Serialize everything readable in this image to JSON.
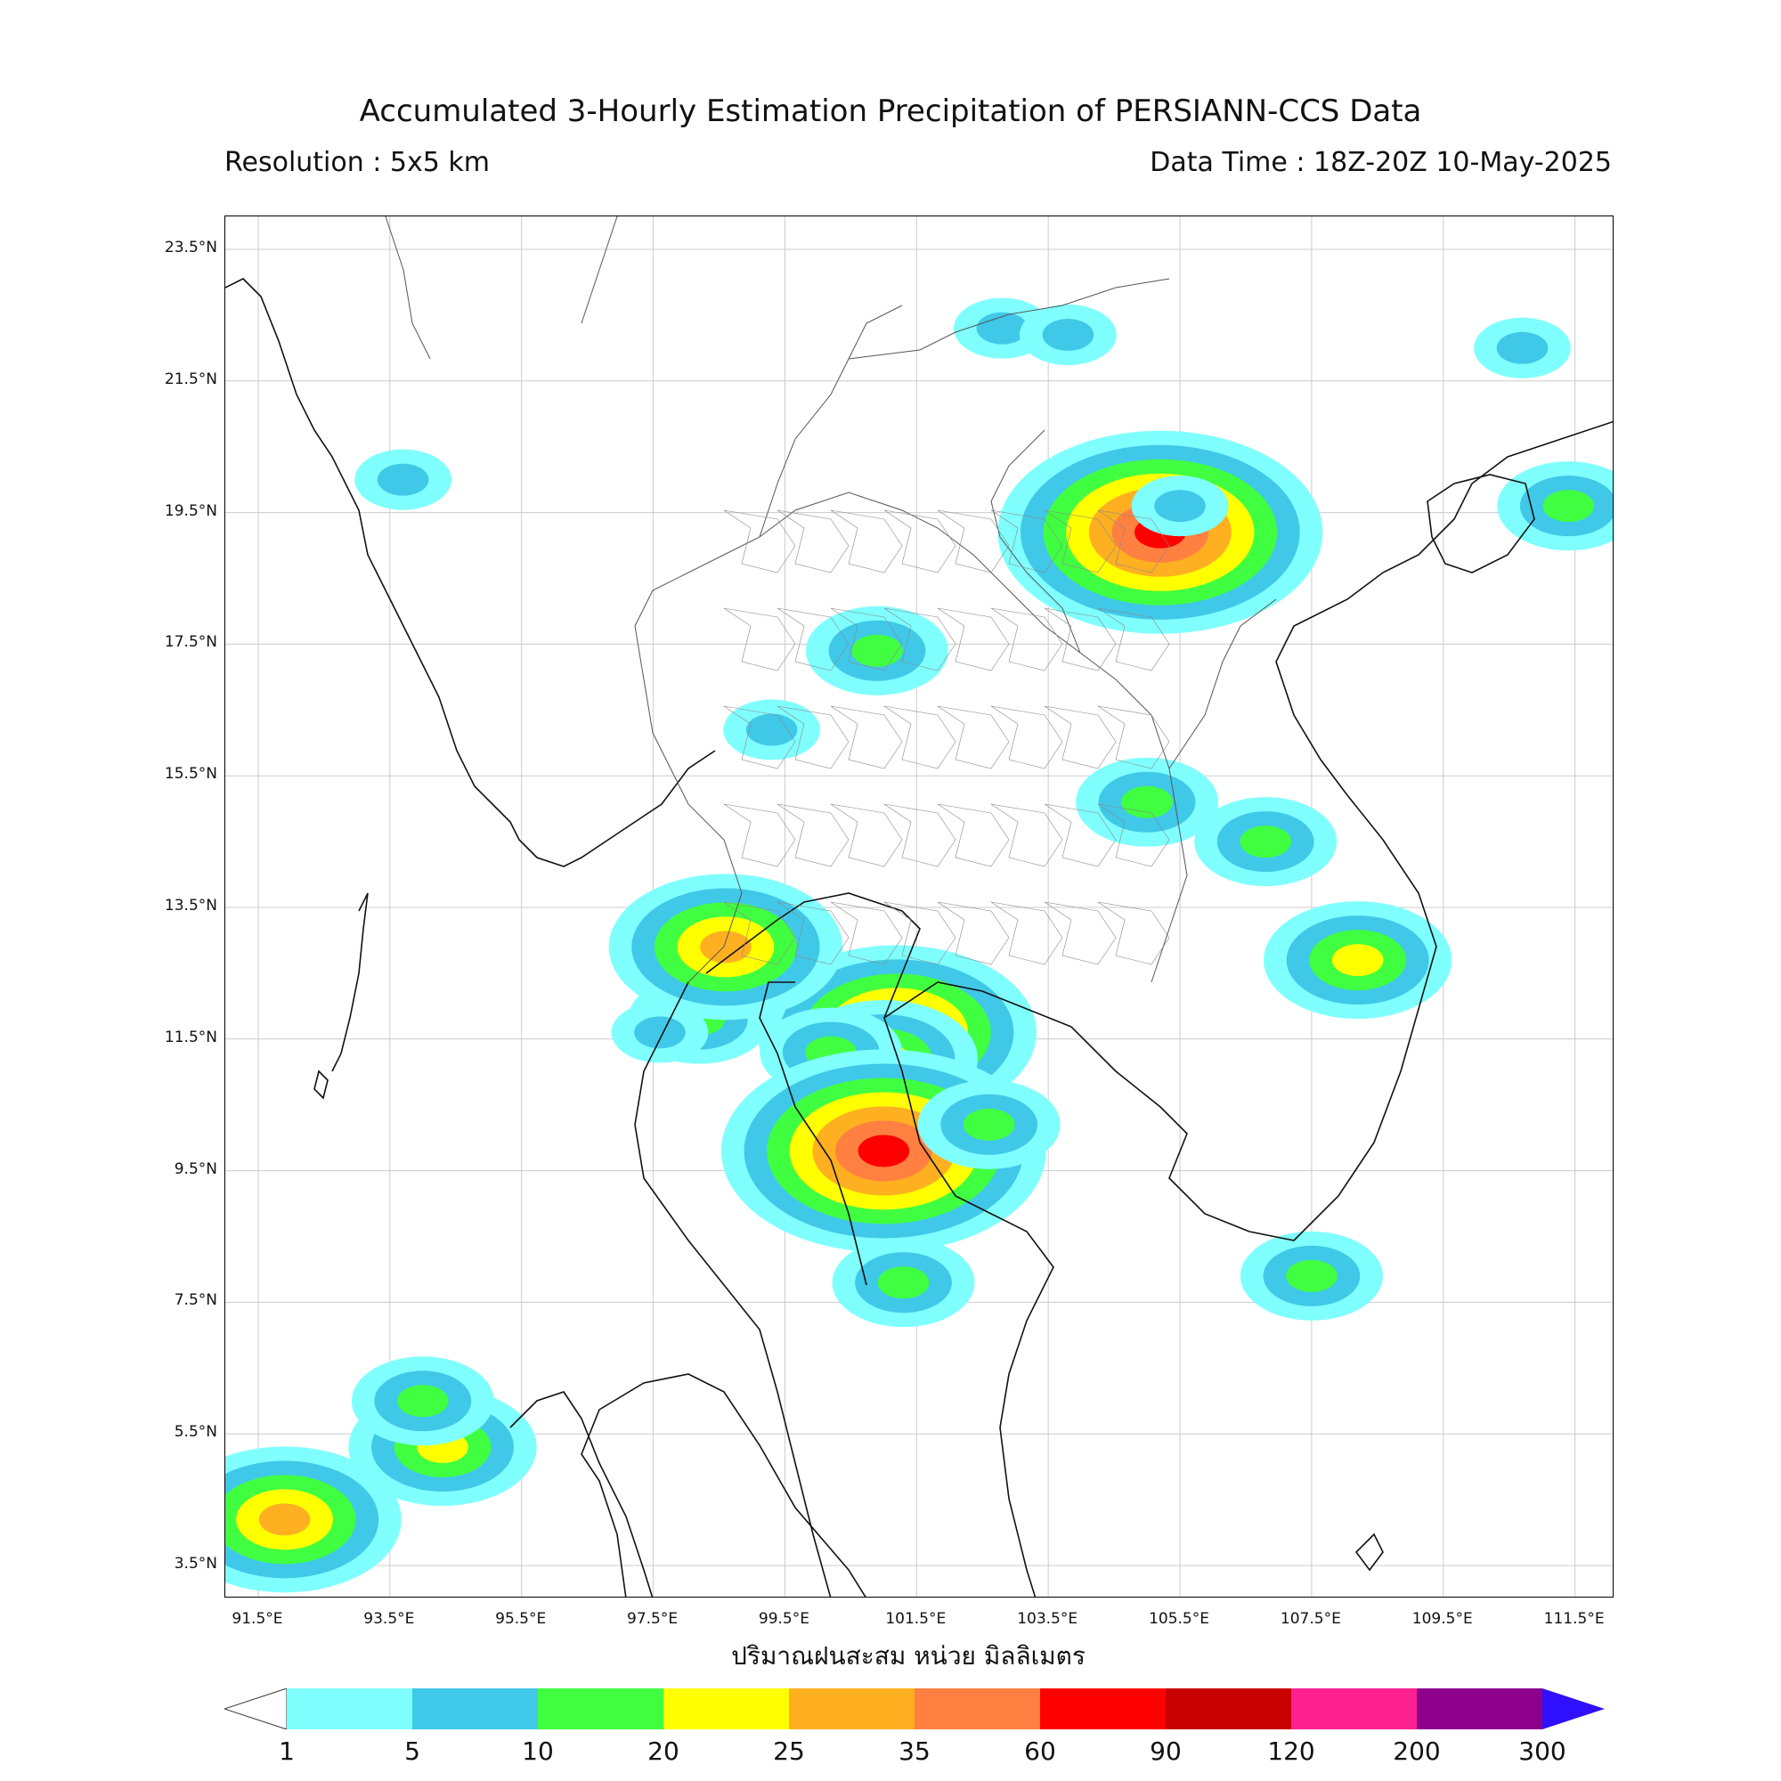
{
  "header": {
    "title": "Accumulated 3-Hourly Estimation Precipitation of PERSIANN-CCS Data",
    "resolution": "Resolution : 5x5 km",
    "data_time": "Data Time : 18Z-20Z 10-May-2025"
  },
  "map": {
    "lat_ticks": [
      "23.5°N",
      "21.5°N",
      "19.5°N",
      "17.5°N",
      "15.5°N",
      "13.5°N",
      "11.5°N",
      "9.5°N",
      "7.5°N",
      "5.5°N",
      "3.5°N"
    ],
    "lon_ticks": [
      "91.5°E",
      "93.5°E",
      "95.5°E",
      "97.5°E",
      "99.5°E",
      "101.5°E",
      "103.5°E",
      "105.5°E",
      "107.5°E",
      "109.5°E",
      "111.5°E"
    ],
    "xlabel": "ปริมาณฝนสะสม หน่วย มิลลิเมตร",
    "extent": {
      "lon_min": 91.0,
      "lon_max": 112.1,
      "lat_min": 3.0,
      "lat_max": 24.0
    },
    "grid": true
  },
  "colorbar": {
    "labels": [
      "1",
      "5",
      "10",
      "20",
      "25",
      "35",
      "60",
      "90",
      "120",
      "200",
      "300"
    ],
    "colors": [
      "#80ffff",
      "#40c8e8",
      "#40ff40",
      "#ffff00",
      "#ffb020",
      "#ff8040",
      "#ff0000",
      "#c80000",
      "#ff2090",
      "#8c008c"
    ],
    "under_color": "#ffffff",
    "over_color": "#3010ff"
  },
  "precip_cells": [
    {
      "lon": 101.2,
      "lat": 11.6,
      "level": 5
    },
    {
      "lon": 101.0,
      "lat": 11.2,
      "level": 3
    },
    {
      "lon": 100.2,
      "lat": 11.3,
      "level": 2
    },
    {
      "lon": 98.2,
      "lat": 11.8,
      "level": 2
    },
    {
      "lon": 97.6,
      "lat": 11.6,
      "level": 1
    },
    {
      "lon": 98.6,
      "lat": 12.9,
      "level": 4
    },
    {
      "lon": 101.0,
      "lat": 9.8,
      "level": 6
    },
    {
      "lon": 102.6,
      "lat": 10.2,
      "level": 2
    },
    {
      "lon": 105.2,
      "lat": 19.2,
      "level": 6
    },
    {
      "lon": 105.5,
      "lat": 19.6,
      "level": 1
    },
    {
      "lon": 102.8,
      "lat": 22.3,
      "level": 1
    },
    {
      "lon": 103.8,
      "lat": 22.2,
      "level": 1
    },
    {
      "lon": 105.0,
      "lat": 15.1,
      "level": 2
    },
    {
      "lon": 106.8,
      "lat": 14.5,
      "level": 2
    },
    {
      "lon": 108.2,
      "lat": 12.7,
      "level": 3
    },
    {
      "lon": 101.3,
      "lat": 7.8,
      "level": 2
    },
    {
      "lon": 100.9,
      "lat": 17.4,
      "level": 2
    },
    {
      "lon": 99.3,
      "lat": 16.2,
      "level": 1
    },
    {
      "lon": 91.9,
      "lat": 4.2,
      "level": 4
    },
    {
      "lon": 94.3,
      "lat": 5.3,
      "level": 3
    },
    {
      "lon": 94.0,
      "lat": 6.0,
      "level": 2
    },
    {
      "lon": 93.7,
      "lat": 20.0,
      "level": 1
    },
    {
      "lon": 107.5,
      "lat": 7.9,
      "level": 2
    },
    {
      "lon": 111.4,
      "lat": 19.6,
      "level": 2
    },
    {
      "lon": 110.7,
      "lat": 22.0,
      "level": 1
    }
  ]
}
